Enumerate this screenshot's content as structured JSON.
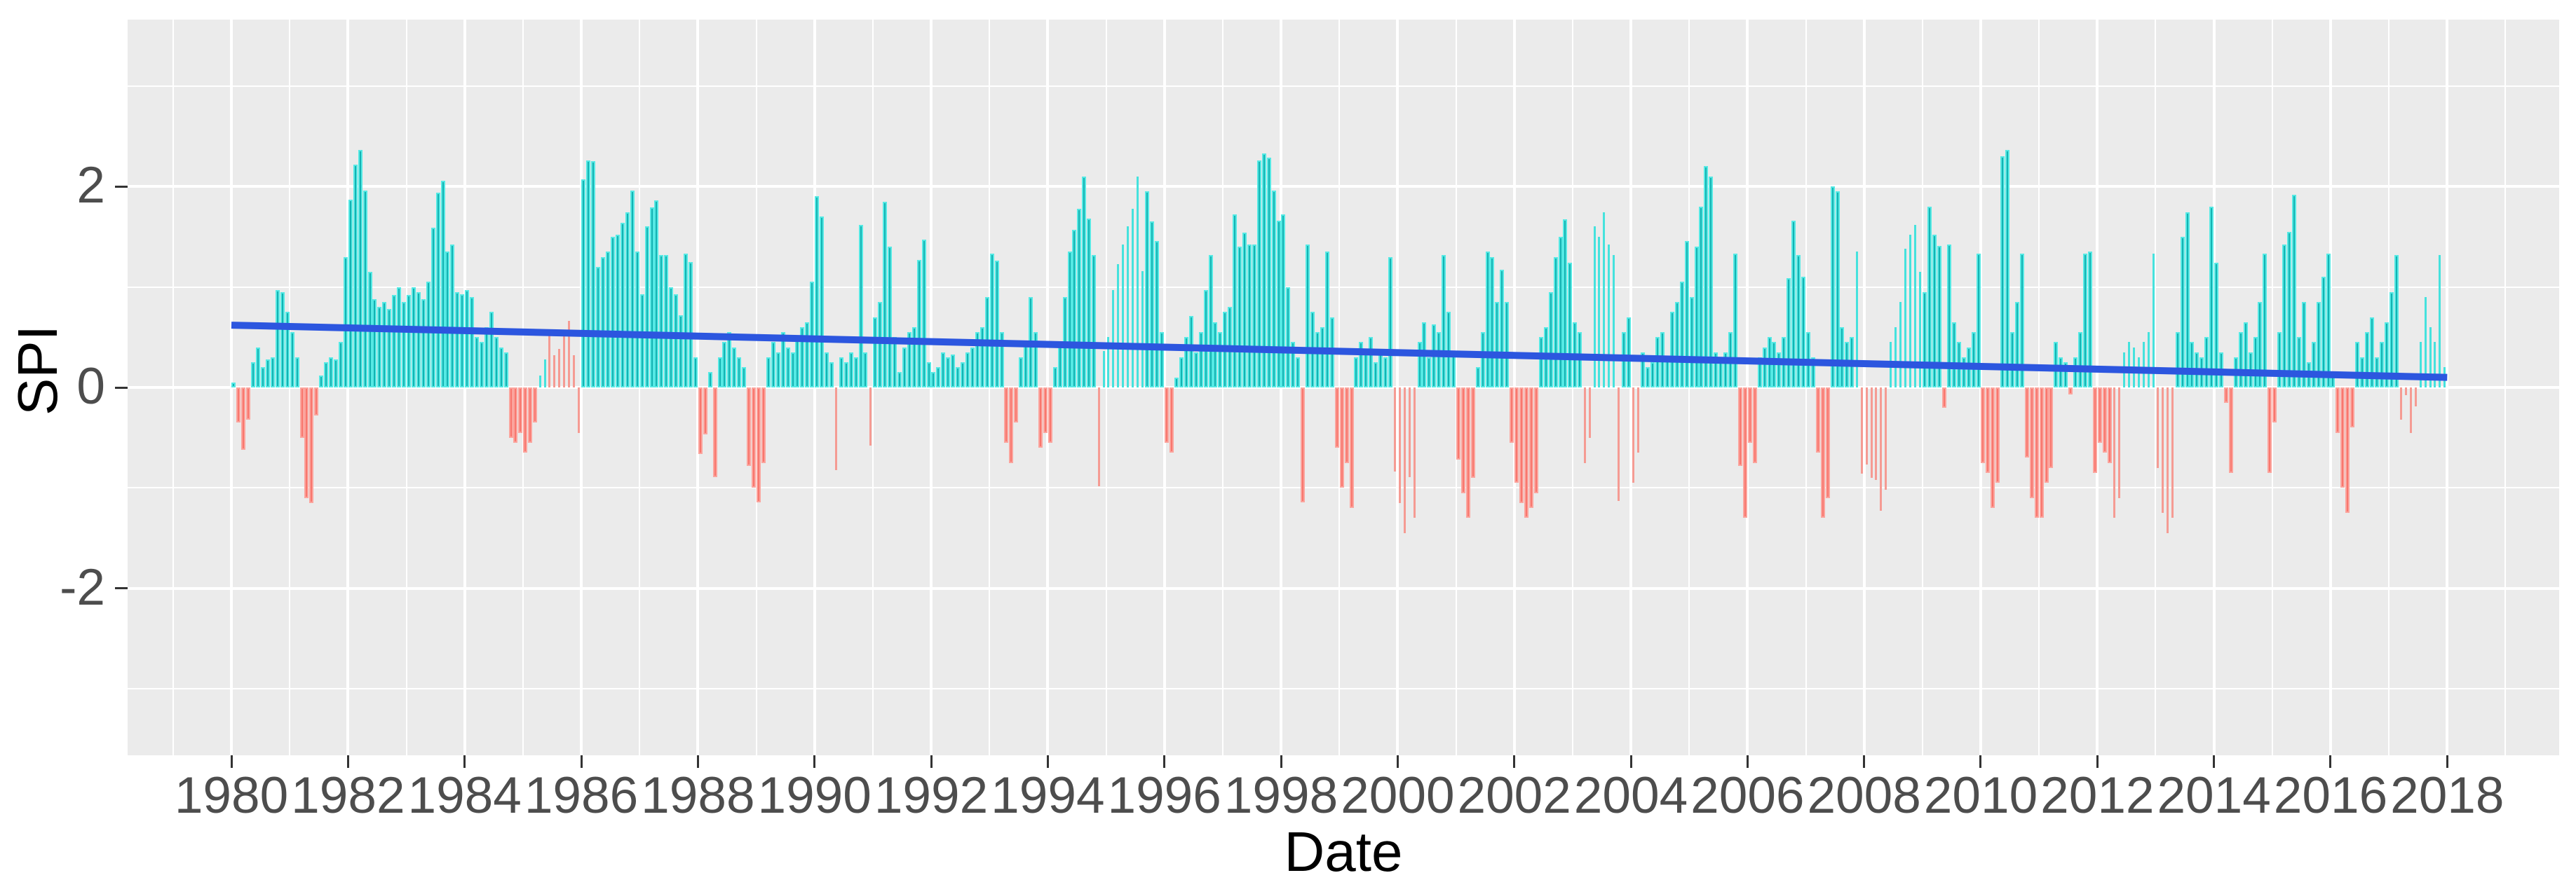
{
  "figure": {
    "xlabel": "Date",
    "ylabel": "SPI"
  },
  "chart_data": {
    "type": "bar",
    "title": "",
    "xlabel": "Date",
    "ylabel": "SPI",
    "grid": true,
    "legend": "none",
    "xlim": [
      1978.22,
      2019.92
    ],
    "ylim": [
      -3.66,
      3.66
    ],
    "x_major_ticks": [
      1980,
      1982,
      1984,
      1986,
      1988,
      1990,
      1992,
      1994,
      1996,
      1998,
      2000,
      2002,
      2004,
      2006,
      2008,
      2010,
      2012,
      2014,
      2016,
      2018
    ],
    "x_minor_gridlines": [
      1979,
      1981,
      1983,
      1985,
      1987,
      1989,
      1991,
      1993,
      1995,
      1997,
      1999,
      2001,
      2003,
      2005,
      2007,
      2009,
      2011,
      2013,
      2015,
      2017,
      2019
    ],
    "y_major_ticks": [
      -2,
      0,
      2
    ],
    "y_minor_gridlines": [
      -3,
      -1,
      1,
      3
    ],
    "series": [
      {
        "name": "monthly-spi-bars",
        "type": "bar",
        "start": "1980-01",
        "frequency": "monthly",
        "values": [
          0.05,
          -0.35,
          -0.62,
          -0.32,
          0.25,
          0.4,
          0.2,
          0.28,
          0.3,
          0.97,
          0.95,
          0.75,
          0.55,
          0.3,
          -0.5,
          -1.1,
          -1.15,
          -0.28,
          0.12,
          0.25,
          0.3,
          0.28,
          0.45,
          1.3,
          1.87,
          2.22,
          2.36,
          1.96,
          1.15,
          0.88,
          0.8,
          0.85,
          0.78,
          0.92,
          1.0,
          0.85,
          0.92,
          1.0,
          0.95,
          0.88,
          1.05,
          1.59,
          1.94,
          2.06,
          1.35,
          1.42,
          0.95,
          0.93,
          0.97,
          0.9,
          0.5,
          0.45,
          0.6,
          0.75,
          0.5,
          0.4,
          0.35,
          -0.5,
          -0.55,
          -0.45,
          -0.65,
          -0.55,
          -0.35,
          0.12,
          0.28,
          0.55,
          0.32,
          0.38,
          0.52,
          0.66,
          0.32,
          -0.45,
          2.07,
          2.26,
          2.25,
          1.2,
          1.3,
          1.35,
          1.5,
          1.52,
          1.64,
          1.74,
          1.96,
          1.35,
          0.93,
          1.6,
          1.79,
          1.86,
          1.32,
          1.32,
          1.0,
          0.93,
          0.72,
          1.33,
          1.25,
          0.3,
          -0.66,
          -0.47,
          0.15,
          -0.89,
          0.3,
          0.45,
          0.55,
          0.4,
          0.3,
          0.2,
          -0.78,
          -1.0,
          -1.14,
          -0.75,
          0.3,
          0.45,
          0.35,
          0.55,
          0.4,
          0.35,
          0.5,
          0.6,
          0.65,
          1.05,
          1.9,
          1.7,
          0.35,
          0.25,
          -0.82,
          0.3,
          0.25,
          0.35,
          0.3,
          1.62,
          0.35,
          -0.58,
          0.7,
          0.85,
          1.85,
          1.4,
          0.5,
          0.15,
          0.4,
          0.55,
          0.6,
          1.27,
          1.47,
          0.25,
          0.15,
          0.2,
          0.35,
          0.3,
          0.33,
          0.2,
          0.25,
          0.35,
          0.4,
          0.55,
          0.6,
          0.9,
          1.33,
          1.26,
          0.55,
          -0.55,
          -0.75,
          -0.35,
          0.3,
          0.45,
          0.9,
          0.55,
          -0.6,
          -0.45,
          -0.55,
          0.2,
          0.45,
          0.9,
          1.35,
          1.57,
          1.78,
          2.1,
          1.68,
          1.32,
          -0.98,
          0.36,
          0.5,
          0.97,
          1.23,
          1.42,
          1.6,
          1.78,
          2.1,
          1.16,
          1.95,
          1.65,
          1.46,
          0.55,
          -0.55,
          -0.65,
          0.1,
          0.3,
          0.5,
          0.71,
          0.35,
          0.55,
          0.97,
          1.32,
          0.65,
          0.55,
          0.75,
          0.8,
          1.72,
          1.4,
          1.54,
          1.42,
          1.42,
          2.26,
          2.33,
          2.29,
          1.96,
          1.66,
          1.72,
          1.0,
          0.45,
          0.3,
          -1.14,
          1.42,
          0.75,
          0.55,
          0.6,
          1.35,
          0.7,
          -0.6,
          -1.0,
          -0.75,
          -1.2,
          0.3,
          0.45,
          0.35,
          0.5,
          0.25,
          0.35,
          0.3,
          1.3,
          -0.84,
          -1.15,
          -1.45,
          -0.89,
          -1.3,
          0.45,
          0.65,
          0.3,
          0.63,
          0.55,
          1.32,
          0.75,
          0.35,
          -0.72,
          -1.05,
          -1.3,
          -0.9,
          0.2,
          0.55,
          1.35,
          1.3,
          0.85,
          1.17,
          0.85,
          -0.55,
          -0.95,
          -1.15,
          -1.3,
          -1.2,
          -1.05,
          0.5,
          0.6,
          0.95,
          1.3,
          1.5,
          1.67,
          1.24,
          0.65,
          0.55,
          -0.75,
          -0.5,
          1.6,
          1.5,
          1.74,
          1.42,
          1.32,
          -1.13,
          0.55,
          0.7,
          -0.95,
          -0.65,
          0.35,
          0.2,
          0.25,
          0.5,
          0.55,
          0.3,
          0.75,
          0.85,
          1.05,
          1.46,
          0.9,
          1.4,
          1.8,
          2.2,
          2.1,
          0.35,
          0.3,
          0.35,
          0.55,
          1.33,
          -0.78,
          -1.3,
          -0.55,
          -0.75,
          0.3,
          0.4,
          0.5,
          0.45,
          0.35,
          0.5,
          1.09,
          1.66,
          1.32,
          1.1,
          0.55,
          0.3,
          -0.65,
          -1.3,
          -1.1,
          2.0,
          1.95,
          0.6,
          0.45,
          0.5,
          1.35,
          -0.86,
          -0.77,
          -0.9,
          -0.92,
          -1.23,
          -1.02,
          0.45,
          0.6,
          0.85,
          1.38,
          1.52,
          1.62,
          1.15,
          0.95,
          1.8,
          1.52,
          1.41,
          -0.2,
          1.42,
          0.65,
          0.45,
          0.3,
          0.4,
          0.55,
          1.33,
          -0.75,
          -0.85,
          -1.2,
          -0.95,
          2.3,
          2.36,
          0.55,
          0.85,
          1.33,
          -0.7,
          -1.1,
          -1.3,
          -1.3,
          -0.95,
          -0.8,
          0.45,
          0.3,
          0.25,
          -0.07,
          0.3,
          0.55,
          1.33,
          1.35,
          -0.85,
          -0.55,
          -0.65,
          -0.75,
          -1.3,
          -1.1,
          0.35,
          0.45,
          0.4,
          0.3,
          0.45,
          0.55,
          1.33,
          -0.8,
          -1.25,
          -1.45,
          -1.3,
          0.55,
          1.5,
          1.74,
          0.45,
          0.35,
          0.3,
          0.5,
          1.8,
          1.24,
          0.35,
          -0.15,
          -0.85,
          0.3,
          0.55,
          0.65,
          0.35,
          0.5,
          0.85,
          1.33,
          -0.85,
          -0.35,
          0.55,
          1.42,
          1.55,
          1.92,
          0.5,
          0.85,
          0.25,
          0.45,
          0.85,
          1.1,
          1.33,
          0.15,
          -0.45,
          -1.0,
          -1.25,
          -0.4,
          0.45,
          0.3,
          0.55,
          0.7,
          0.3,
          0.45,
          0.65,
          0.95,
          1.32,
          -0.32,
          -0.08,
          -0.45,
          -0.19,
          0.45,
          0.9,
          0.6,
          0.45,
          1.32,
          0.2
        ],
        "narrow_bar_indices": [
          63,
          64,
          65,
          66,
          67,
          68,
          69,
          70,
          71,
          124,
          131,
          178,
          179,
          180,
          181,
          182,
          183,
          184,
          185,
          186,
          187,
          239,
          240,
          241,
          242,
          243,
          278,
          279,
          280,
          281,
          282,
          283,
          284,
          285,
          288,
          289,
          334,
          335,
          336,
          337,
          338,
          339,
          340,
          341,
          342,
          343,
          344,
          345,
          346,
          347,
          387,
          388,
          389,
          390,
          391,
          392,
          393,
          394,
          395,
          396,
          397,
          398,
          399,
          446,
          447,
          448,
          449,
          450,
          451,
          452,
          453,
          454,
          455
        ],
        "red_positive_indices": [
          65,
          66,
          67,
          68,
          69,
          70
        ]
      },
      {
        "name": "linear-trend-line",
        "type": "line",
        "points": [
          [
            1980.0,
            0.62
          ],
          [
            2018.0,
            0.1
          ]
        ]
      }
    ],
    "colors": {
      "panel_background": "#EBEBEB",
      "gridline": "#FFFFFF",
      "positive_bar_fill": "#13B2B2",
      "positive_bar_edge": "#55E9E4",
      "negative_bar_fill": "#F8766D",
      "negative_bar_edge": "#FBA49D",
      "narrow_positive_bar": "#45E2DD",
      "narrow_negative_bar": "#F59B93",
      "trend_line": "#2C56DF",
      "tick_mark": "#333333",
      "axis_text": "#4D4D4D",
      "axis_title": "#000000"
    }
  }
}
